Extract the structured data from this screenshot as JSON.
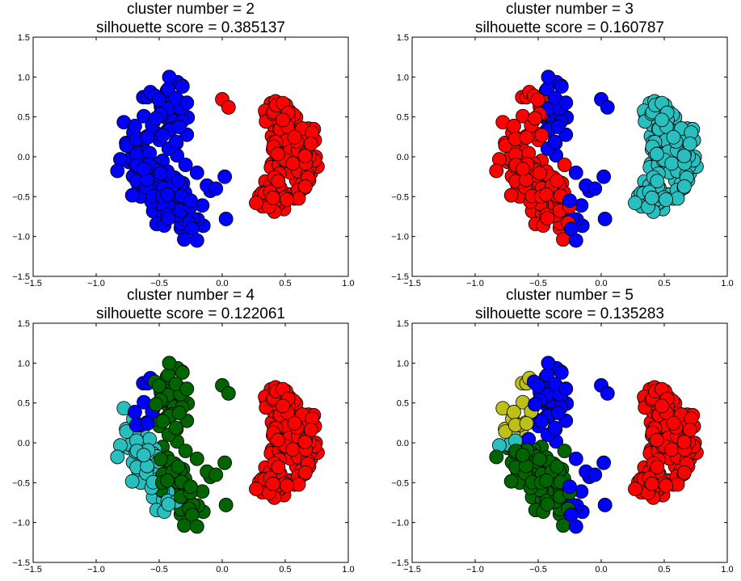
{
  "figure": {
    "layout": "2x2 grid of scatter plots"
  },
  "chart_data": [
    {
      "type": "scatter",
      "title": "cluster number = 2",
      "subtitle": "silhouette score = 0.385137",
      "xlabel": "",
      "ylabel": "",
      "xlim": [
        -1.5,
        1.0
      ],
      "ylim": [
        -1.5,
        1.5
      ],
      "xticks": [
        "−1.5",
        "−1.0",
        "−0.5",
        "0.0",
        "0.5",
        "1.0"
      ],
      "yticks": [
        "1.5",
        "1.0",
        "0.5",
        "0.0",
        "−0.5",
        "−1.0",
        "−1.5"
      ],
      "grid": false,
      "clusters": [
        {
          "color": "#0000ff"
        },
        {
          "color": "#ff0000"
        }
      ]
    },
    {
      "type": "scatter",
      "title": "cluster number = 3",
      "subtitle": "silhouette score = 0.160787",
      "xlabel": "",
      "ylabel": "",
      "xlim": [
        -1.5,
        1.0
      ],
      "ylim": [
        -1.5,
        1.5
      ],
      "xticks": [
        "−1.5",
        "−1.0",
        "−0.5",
        "0.0",
        "0.5",
        "1.0"
      ],
      "yticks": [
        "1.5",
        "1.0",
        "0.5",
        "0.0",
        "−0.5",
        "−1.0",
        "−1.5"
      ],
      "grid": false,
      "clusters": [
        {
          "color": "#ff0000"
        },
        {
          "color": "#0000ff"
        },
        {
          "color": "#29bfbf"
        }
      ]
    },
    {
      "type": "scatter",
      "title": "cluster number = 4",
      "subtitle": "silhouette score = 0.122061",
      "xlabel": "",
      "ylabel": "",
      "xlim": [
        -1.5,
        1.0
      ],
      "ylim": [
        -1.5,
        1.5
      ],
      "xticks": [
        "−1.5",
        "−1.0",
        "−0.5",
        "0.0",
        "0.5",
        "1.0"
      ],
      "yticks": [
        "1.5",
        "1.0",
        "0.5",
        "0.0",
        "−0.5",
        "−1.0",
        "−1.5"
      ],
      "grid": false,
      "clusters": [
        {
          "color": "#29bfbf"
        },
        {
          "color": "#0000ff"
        },
        {
          "color": "#006400"
        },
        {
          "color": "#ff0000"
        }
      ]
    },
    {
      "type": "scatter",
      "title": "cluster number = 5",
      "subtitle": "silhouette score = 0.135283",
      "xlabel": "",
      "ylabel": "",
      "xlim": [
        -1.5,
        1.0
      ],
      "ylim": [
        -1.5,
        1.5
      ],
      "xticks": [
        "−1.5",
        "−1.0",
        "−0.5",
        "0.0",
        "0.5",
        "1.0"
      ],
      "yticks": [
        "1.5",
        "1.0",
        "0.5",
        "0.0",
        "−0.5",
        "−1.0",
        "−1.5"
      ],
      "grid": false,
      "clusters": [
        {
          "color": "#bfbf19"
        },
        {
          "color": "#0000ff"
        },
        {
          "color": "#006400"
        },
        {
          "color": "#29bfbf"
        },
        {
          "color": "#ff0000"
        }
      ]
    }
  ]
}
